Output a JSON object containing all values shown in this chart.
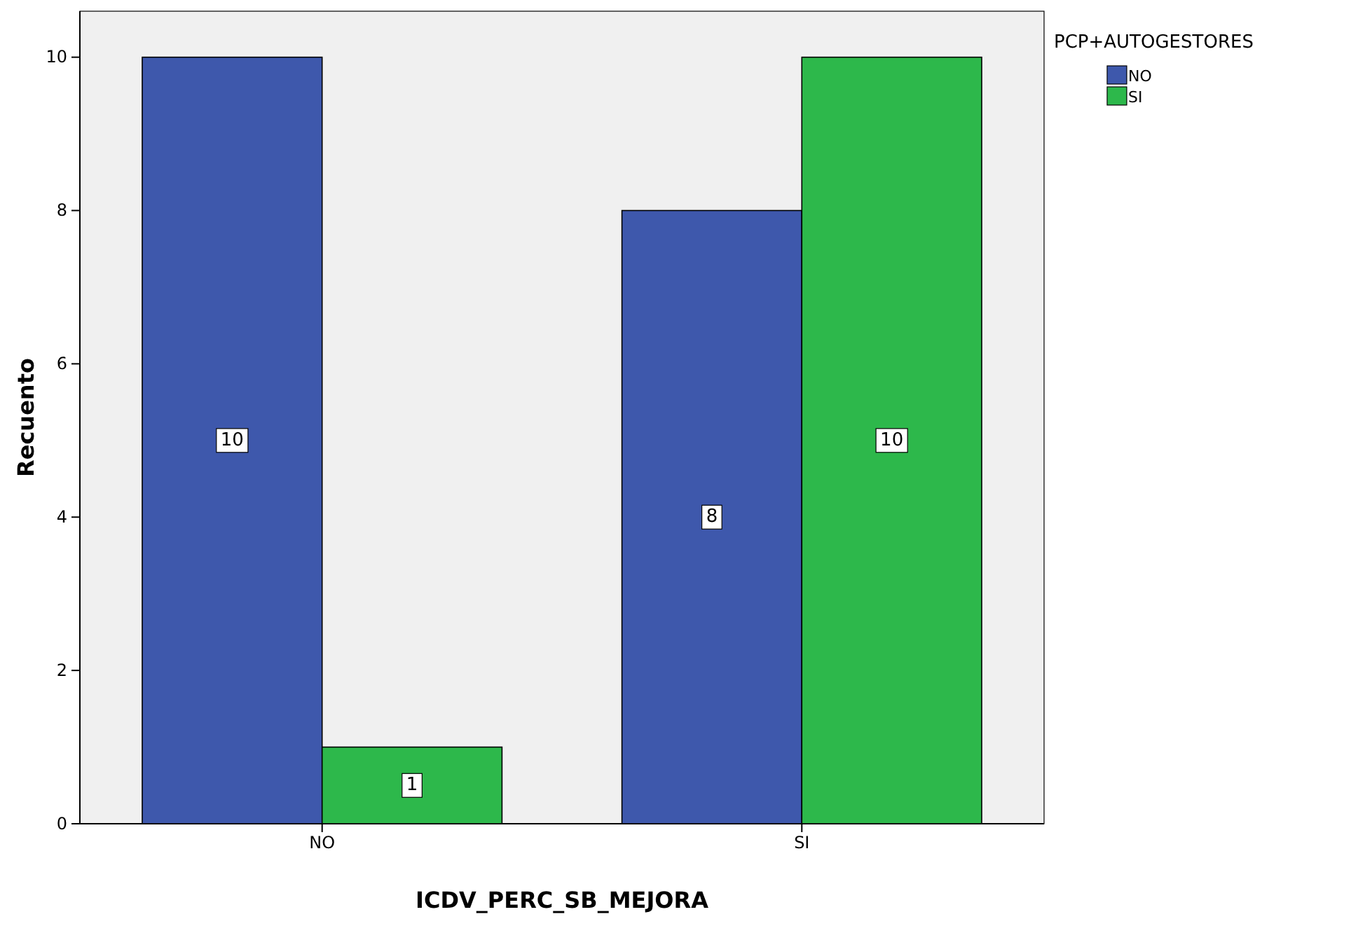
{
  "chart_data": {
    "type": "bar",
    "xlabel": "ICDV_PERC_SB_MEJORA",
    "ylabel": "Recuento",
    "legend_title": "PCP+AUTOGESTORES",
    "categories": [
      "NO",
      "SI"
    ],
    "series": [
      {
        "name": "NO",
        "color": "#3e58ac",
        "values": [
          10,
          8
        ]
      },
      {
        "name": "SI",
        "color": "#2db84b",
        "values": [
          1,
          10
        ]
      }
    ],
    "ylim": [
      0,
      10.6
    ],
    "yticks": [
      0,
      2,
      4,
      6,
      8,
      10
    ],
    "grid": false,
    "legend": "top right",
    "data_labels": true
  }
}
